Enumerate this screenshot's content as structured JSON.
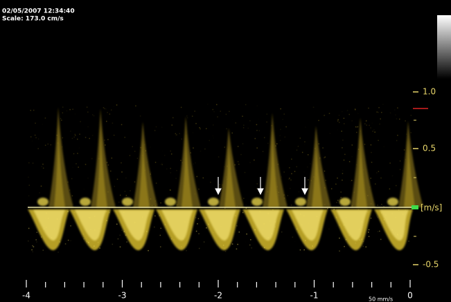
{
  "header": {
    "datetime": "02/05/2007 12:34:40",
    "scale": "Scale: 173.0 cm/s"
  },
  "velocity_axis": {
    "ticks": [
      "1.0",
      "0.5",
      "-0.5"
    ],
    "unit": "[m/s]"
  },
  "time_axis": {
    "ticks": [
      "-4",
      "-3",
      "-2",
      "-1",
      "0"
    ],
    "sweep": "50 mm/s"
  }
}
